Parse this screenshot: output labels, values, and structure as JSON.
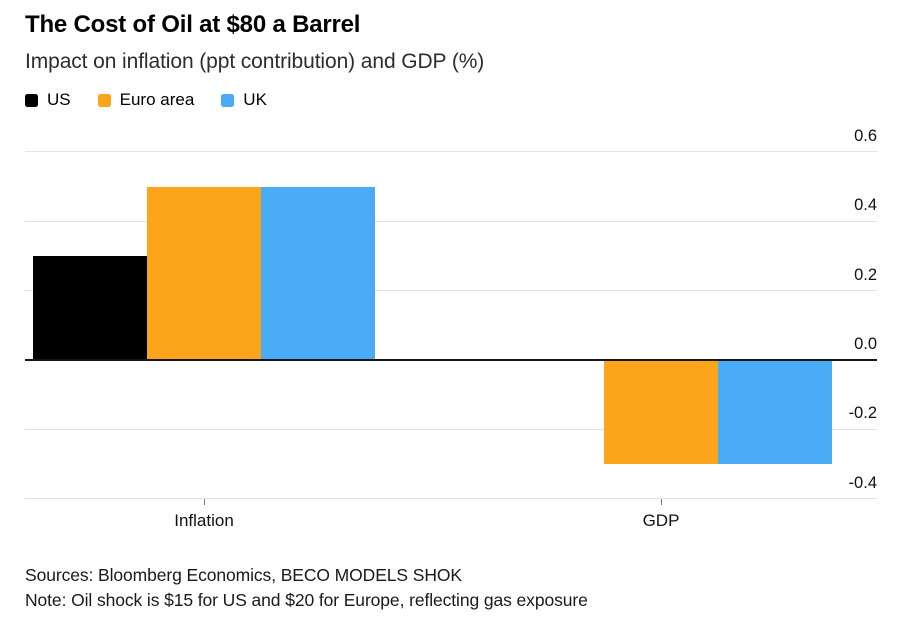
{
  "header": {
    "title": "The Cost of Oil at $80 a Barrel",
    "subtitle": "Impact on inflation (ppt contribution) and GDP (%)"
  },
  "legend": [
    {
      "label": "US",
      "color": "#000000"
    },
    {
      "label": "Euro area",
      "color": "#FCA41A"
    },
    {
      "label": "UK",
      "color": "#4AABF7"
    }
  ],
  "chart_data": {
    "type": "bar",
    "title": "The Cost of Oil at $80 a Barrel",
    "subtitle": "Impact on inflation (ppt contribution) and GDP (%)",
    "categories": [
      "Inflation",
      "GDP"
    ],
    "series": [
      {
        "name": "US",
        "color": "#000000",
        "values": [
          0.3,
          0.0
        ]
      },
      {
        "name": "Euro area",
        "color": "#FCA41A",
        "values": [
          0.5,
          -0.3
        ]
      },
      {
        "name": "UK",
        "color": "#4AABF7",
        "values": [
          0.5,
          -0.3
        ]
      }
    ],
    "ylim": [
      -0.4,
      0.6
    ],
    "yticks": [
      0.6,
      0.4,
      0.2,
      0.0,
      -0.2,
      -0.4
    ],
    "ytick_labels": [
      "0.6",
      "0.4",
      "0.2",
      "0.0",
      "-0.2",
      "-0.4"
    ],
    "grid": "horizontal",
    "axis_label_position": "right",
    "legend_position": "top-left",
    "zero_line": true
  },
  "footer": {
    "sources": "Sources: Bloomberg Economics, BECO MODELS SHOK",
    "note": "Note: Oil shock is $15 for US and $20 for Europe, reflecting gas exposure"
  },
  "colors": {
    "background": "#ffffff",
    "gridline": "#e3e3e3",
    "zero_line": "#161616",
    "text": "#111111",
    "us": "#000000",
    "euro_area": "#FCA41A",
    "uk": "#4AABF7"
  }
}
